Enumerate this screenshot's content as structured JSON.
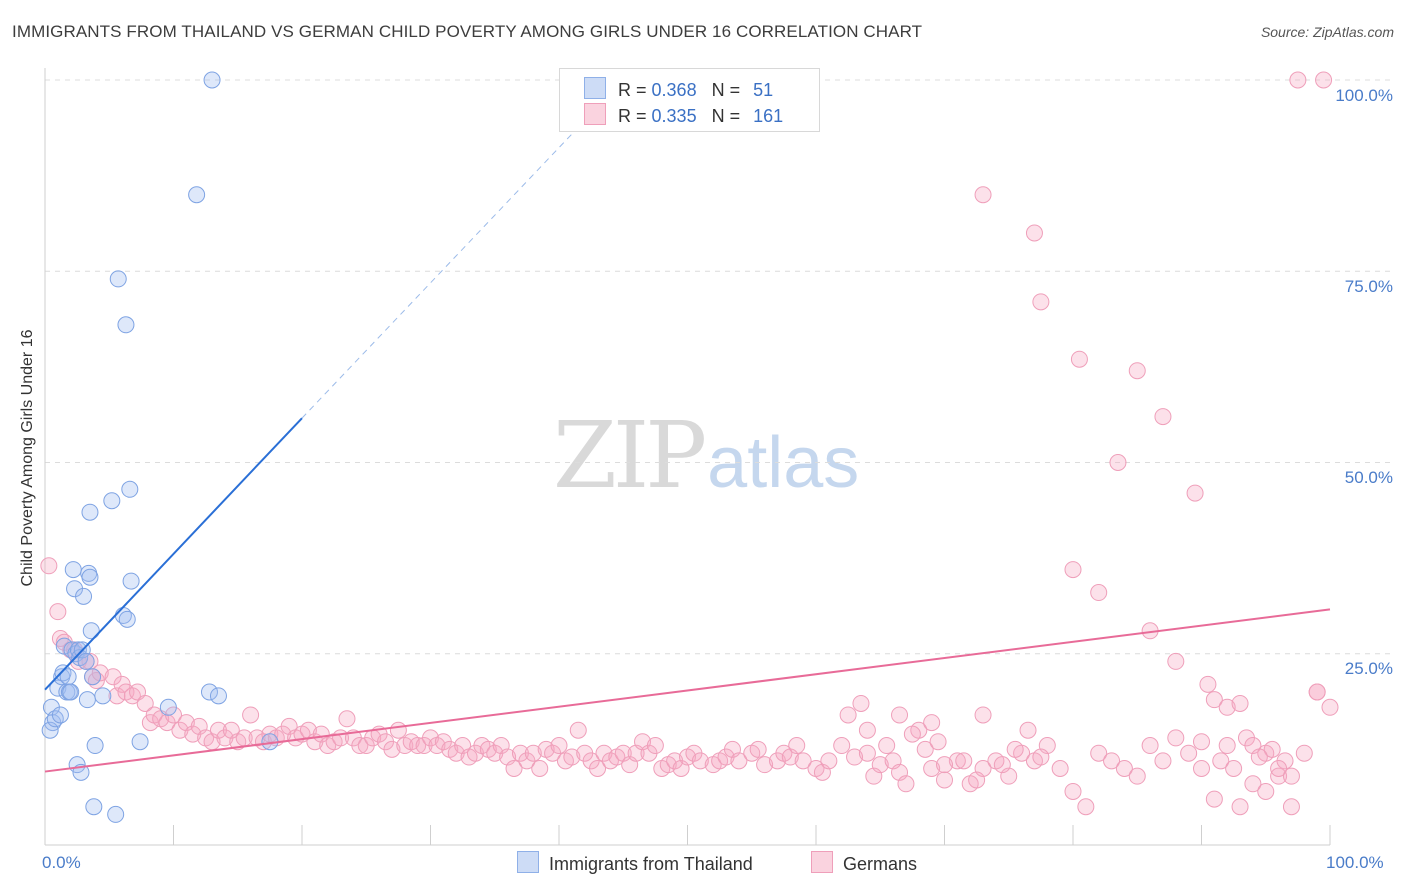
{
  "header": {
    "title": "IMMIGRANTS FROM THAILAND VS GERMAN CHILD POVERTY AMONG GIRLS UNDER 16 CORRELATION CHART",
    "source": "Source: ZipAtlas.com"
  },
  "watermark": {
    "zip": "ZIP",
    "atlas": "atlas"
  },
  "legend": {
    "rows": [
      {
        "r_label": "R =",
        "r_value": "0.368",
        "n_label": "N =",
        "n_value": "51",
        "color": "#a8c4ef"
      },
      {
        "r_label": "R =",
        "r_value": "0.335",
        "n_label": "N =",
        "n_value": "161",
        "color": "#f5b6c8"
      }
    ]
  },
  "bottom_legend": {
    "items": [
      {
        "label": "Immigrants from Thailand",
        "color": "#a8c4ef"
      },
      {
        "label": "Germans",
        "color": "#f5b6c8"
      }
    ]
  },
  "chart_data": {
    "type": "scatter",
    "title": "IMMIGRANTS FROM THAILAND VS GERMAN CHILD POVERTY AMONG GIRLS UNDER 16 CORRELATION CHART",
    "xlabel": "",
    "ylabel": "Child Poverty Among Girls Under 16",
    "xlim": [
      0,
      100
    ],
    "ylim": [
      0,
      100
    ],
    "x_tick_labels": [
      "0.0%",
      "100.0%"
    ],
    "y_tick_labels": [
      "25.0%",
      "50.0%",
      "75.0%",
      "100.0%"
    ],
    "y_ticks": [
      25,
      50,
      75,
      100
    ],
    "grid": true,
    "colors": {
      "thailand": "#5b8ee0",
      "germans": "#eb7fa4",
      "thailand_line": "#2a6fd6",
      "germans_line": "#e86b98"
    },
    "series": [
      {
        "name": "Immigrants from Thailand",
        "r": 0.368,
        "n": 51,
        "trend": {
          "x": [
            0,
            20
          ],
          "y": [
            20.3,
            55.8
          ],
          "dashed_to": [
            45,
            100
          ]
        },
        "points": [
          [
            0.5,
            18
          ],
          [
            0.6,
            16
          ],
          [
            0.4,
            15
          ],
          [
            0.8,
            16.5
          ],
          [
            1.0,
            20.5
          ],
          [
            1.2,
            17
          ],
          [
            1.3,
            22
          ],
          [
            1.4,
            22.5
          ],
          [
            1.5,
            26
          ],
          [
            1.7,
            20
          ],
          [
            1.8,
            22
          ],
          [
            1.9,
            20
          ],
          [
            2.0,
            20
          ],
          [
            2.1,
            25.5
          ],
          [
            2.2,
            36
          ],
          [
            2.3,
            33.5
          ],
          [
            2.4,
            25
          ],
          [
            2.5,
            10.5
          ],
          [
            2.6,
            25.5
          ],
          [
            2.7,
            24.5
          ],
          [
            2.8,
            9.5
          ],
          [
            2.9,
            25.5
          ],
          [
            3.0,
            32.5
          ],
          [
            3.2,
            24
          ],
          [
            3.3,
            19
          ],
          [
            3.4,
            35.5
          ],
          [
            3.5,
            43.5
          ],
          [
            3.5,
            35
          ],
          [
            3.6,
            28
          ],
          [
            3.7,
            22
          ],
          [
            3.8,
            5
          ],
          [
            3.9,
            13
          ],
          [
            4.5,
            19.5
          ],
          [
            5.2,
            45
          ],
          [
            5.5,
            4
          ],
          [
            5.7,
            74
          ],
          [
            6.1,
            30
          ],
          [
            6.3,
            68
          ],
          [
            6.4,
            29.5
          ],
          [
            6.6,
            46.5
          ],
          [
            6.7,
            34.5
          ],
          [
            7.4,
            13.5
          ],
          [
            9.6,
            18
          ],
          [
            11.8,
            85
          ],
          [
            12.8,
            20
          ],
          [
            13.0,
            100
          ],
          [
            13.5,
            19.5
          ],
          [
            17.5,
            13.5
          ]
        ]
      },
      {
        "name": "Germans",
        "r": 0.335,
        "n": 161,
        "trend": {
          "x": [
            0,
            100
          ],
          "y": [
            9.6,
            30.8
          ]
        },
        "points": [
          [
            0.3,
            36.5
          ],
          [
            1.0,
            30.5
          ],
          [
            1.2,
            27
          ],
          [
            1.5,
            26.5
          ],
          [
            2.0,
            25.5
          ],
          [
            2.3,
            25.5
          ],
          [
            2.6,
            24
          ],
          [
            3.2,
            24
          ],
          [
            3.5,
            24
          ],
          [
            3.7,
            22
          ],
          [
            4.0,
            21.5
          ],
          [
            4.3,
            22.5
          ],
          [
            5.3,
            22
          ],
          [
            5.6,
            19.5
          ],
          [
            6.0,
            21
          ],
          [
            6.3,
            20
          ],
          [
            6.8,
            19.5
          ],
          [
            7.2,
            20
          ],
          [
            7.8,
            18.5
          ],
          [
            8.2,
            16
          ],
          [
            8.5,
            17
          ],
          [
            9.0,
            16.5
          ],
          [
            9.5,
            16
          ],
          [
            10.0,
            17
          ],
          [
            10.5,
            15
          ],
          [
            11.0,
            16
          ],
          [
            11.5,
            14.5
          ],
          [
            12.0,
            15.5
          ],
          [
            12.5,
            14
          ],
          [
            13.0,
            13.5
          ],
          [
            13.5,
            15
          ],
          [
            14.0,
            14
          ],
          [
            14.5,
            15
          ],
          [
            15.0,
            13.5
          ],
          [
            15.5,
            14
          ],
          [
            16.0,
            17
          ],
          [
            16.5,
            14
          ],
          [
            17.0,
            13.5
          ],
          [
            17.5,
            14.5
          ],
          [
            18.0,
            14
          ],
          [
            18.5,
            14.5
          ],
          [
            19.0,
            15.5
          ],
          [
            19.5,
            14
          ],
          [
            20.0,
            14.5
          ],
          [
            20.5,
            15
          ],
          [
            21.0,
            13.5
          ],
          [
            21.5,
            14.5
          ],
          [
            22.0,
            13
          ],
          [
            22.5,
            13.5
          ],
          [
            23.0,
            14
          ],
          [
            23.5,
            16.5
          ],
          [
            24.0,
            14
          ],
          [
            24.5,
            13
          ],
          [
            25.0,
            13
          ],
          [
            25.5,
            14
          ],
          [
            26.0,
            14.5
          ],
          [
            26.5,
            13.5
          ],
          [
            27.0,
            12.5
          ],
          [
            27.5,
            15
          ],
          [
            28.0,
            13
          ],
          [
            28.5,
            13.5
          ],
          [
            29.0,
            13
          ],
          [
            29.5,
            13
          ],
          [
            30.0,
            14
          ],
          [
            30.5,
            13
          ],
          [
            31.0,
            13.5
          ],
          [
            31.5,
            12.5
          ],
          [
            32.0,
            12
          ],
          [
            32.5,
            13
          ],
          [
            33.0,
            11.5
          ],
          [
            33.5,
            12
          ],
          [
            34.0,
            13
          ],
          [
            34.5,
            12.5
          ],
          [
            35.0,
            12
          ],
          [
            35.5,
            13
          ],
          [
            36.0,
            11.5
          ],
          [
            36.5,
            10
          ],
          [
            37.0,
            12
          ],
          [
            37.5,
            11
          ],
          [
            38.0,
            12
          ],
          [
            38.5,
            10
          ],
          [
            39.0,
            12.5
          ],
          [
            39.5,
            12
          ],
          [
            40.0,
            13
          ],
          [
            40.5,
            11
          ],
          [
            41.0,
            11.5
          ],
          [
            41.5,
            15
          ],
          [
            42.0,
            12
          ],
          [
            42.5,
            11
          ],
          [
            43.0,
            10
          ],
          [
            43.5,
            12
          ],
          [
            44.0,
            11
          ],
          [
            44.5,
            11.5
          ],
          [
            45.0,
            12
          ],
          [
            45.5,
            10.5
          ],
          [
            46.0,
            12
          ],
          [
            46.5,
            13.5
          ],
          [
            47.0,
            12
          ],
          [
            47.5,
            13
          ],
          [
            48.0,
            10
          ],
          [
            48.5,
            10.5
          ],
          [
            49.0,
            11
          ],
          [
            49.5,
            10
          ],
          [
            50.0,
            11.5
          ],
          [
            50.5,
            12
          ],
          [
            51.0,
            11
          ],
          [
            52.0,
            10.5
          ],
          [
            52.5,
            11
          ],
          [
            53.0,
            11.5
          ],
          [
            53.5,
            12.5
          ],
          [
            54.0,
            11
          ],
          [
            55.0,
            12
          ],
          [
            55.5,
            12.5
          ],
          [
            56.0,
            10.5
          ],
          [
            57.0,
            11
          ],
          [
            57.5,
            12
          ],
          [
            58.0,
            11.5
          ],
          [
            58.5,
            13
          ],
          [
            59.0,
            11
          ],
          [
            60.0,
            10
          ],
          [
            60.5,
            9.5
          ],
          [
            61.0,
            11
          ],
          [
            62.0,
            13
          ],
          [
            63.0,
            11.5
          ],
          [
            64.0,
            12
          ],
          [
            64.5,
            9
          ],
          [
            65.0,
            10.5
          ],
          [
            66.0,
            11
          ],
          [
            66.5,
            9.5
          ],
          [
            67.0,
            8
          ],
          [
            68.0,
            15
          ],
          [
            69.0,
            10
          ],
          [
            70.0,
            8.5
          ],
          [
            71.0,
            11
          ],
          [
            72.0,
            8
          ],
          [
            73.0,
            10
          ],
          [
            74.0,
            11
          ],
          [
            75.0,
            9
          ],
          [
            76.0,
            12
          ],
          [
            77.0,
            11
          ],
          [
            78.0,
            13
          ],
          [
            79.0,
            10
          ],
          [
            80.0,
            7
          ],
          [
            81.0,
            5
          ],
          [
            82.0,
            12
          ],
          [
            83.0,
            11
          ],
          [
            84.0,
            10
          ],
          [
            85.0,
            9
          ],
          [
            86.0,
            13
          ],
          [
            87.0,
            11
          ],
          [
            88.0,
            14
          ],
          [
            89.0,
            12
          ],
          [
            90.0,
            10
          ],
          [
            91.0,
            6
          ],
          [
            92.0,
            13
          ],
          [
            93.0,
            5
          ],
          [
            94.0,
            8
          ],
          [
            95.0,
            7
          ],
          [
            96.0,
            9
          ],
          [
            97.0,
            5
          ],
          [
            98.0,
            12
          ],
          [
            99.0,
            20
          ],
          [
            100.0,
            18
          ],
          [
            62.5,
            17
          ],
          [
            63.5,
            18.5
          ],
          [
            64.0,
            15
          ],
          [
            65.5,
            13
          ],
          [
            66.5,
            17
          ],
          [
            67.5,
            14.5
          ],
          [
            68.5,
            12.5
          ],
          [
            69.0,
            16
          ],
          [
            69.5,
            13.5
          ],
          [
            70.0,
            10.5
          ],
          [
            71.5,
            11
          ],
          [
            72.5,
            8.5
          ],
          [
            73.0,
            17
          ],
          [
            74.5,
            10.5
          ],
          [
            75.5,
            12.5
          ],
          [
            76.5,
            15
          ],
          [
            77.5,
            11.5
          ],
          [
            80.0,
            36
          ],
          [
            82.0,
            33
          ],
          [
            85.0,
            62
          ],
          [
            86.0,
            28
          ],
          [
            88.0,
            24
          ],
          [
            73.0,
            85
          ],
          [
            77.0,
            80
          ],
          [
            77.5,
            71
          ],
          [
            80.5,
            63.5
          ],
          [
            83.5,
            50
          ],
          [
            87.0,
            56
          ],
          [
            89.5,
            46
          ],
          [
            90.5,
            21
          ],
          [
            91.0,
            19
          ],
          [
            92.0,
            18
          ],
          [
            93.5,
            14
          ],
          [
            94.0,
            13
          ],
          [
            95.0,
            12
          ],
          [
            96.5,
            11
          ],
          [
            97.5,
            100
          ],
          [
            99.5,
            100
          ],
          [
            99.0,
            20
          ],
          [
            93.0,
            18.5
          ],
          [
            95.5,
            12.5
          ],
          [
            90.0,
            13.5
          ],
          [
            91.5,
            11
          ],
          [
            92.5,
            10
          ],
          [
            94.5,
            11.5
          ],
          [
            96.0,
            10
          ],
          [
            97.0,
            9
          ]
        ]
      }
    ]
  },
  "y_axis": {
    "label": "Child Poverty Among Girls Under 16"
  }
}
